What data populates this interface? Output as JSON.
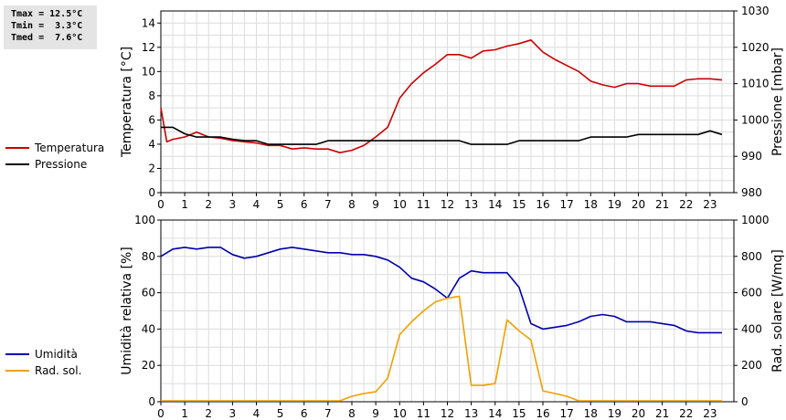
{
  "stats": {
    "tmax": "Tmax = 12.5°C",
    "tmin": "Tmin =  3.3°C",
    "tmed": "Tmed =  7.6°C"
  },
  "legend_top": [
    {
      "label": "Temperatura",
      "color": "#cc0000"
    },
    {
      "label": "Pressione",
      "color": "#000000"
    }
  ],
  "legend_bottom": [
    {
      "label": "Umidità",
      "color": "#0000aa"
    },
    {
      "label": "Rad. sol.",
      "color": "#f0a000"
    }
  ],
  "chart_data": [
    {
      "type": "line",
      "ylabel": "Temperatura [°C]",
      "y2label": "Pressione [mbar]",
      "xlim": [
        0,
        24
      ],
      "ylim": [
        0,
        15
      ],
      "y2lim": [
        980,
        1030
      ],
      "xticks": [
        0,
        1,
        2,
        3,
        4,
        5,
        6,
        7,
        8,
        9,
        10,
        11,
        12,
        13,
        14,
        15,
        16,
        17,
        18,
        19,
        20,
        21,
        22,
        23
      ],
      "yticks": [
        0,
        2,
        4,
        6,
        8,
        10,
        12,
        14
      ],
      "y2ticks": [
        980,
        990,
        1000,
        1010,
        1020,
        1030
      ],
      "grid": true,
      "series": [
        {
          "name": "Temperatura",
          "axis": "left",
          "color": "#cc0000",
          "x": [
            0,
            0.25,
            0.5,
            1,
            1.5,
            2,
            2.5,
            3,
            3.5,
            4,
            4.5,
            5,
            5.5,
            6,
            6.5,
            7,
            7.5,
            8,
            8.5,
            9,
            9.5,
            10,
            10.5,
            11,
            11.5,
            12,
            12.5,
            13,
            13.5,
            14,
            14.5,
            15,
            15.5,
            16,
            16.5,
            17,
            17.5,
            18,
            18.5,
            19,
            19.5,
            20,
            20.5,
            21,
            21.5,
            22,
            22.5,
            23,
            23.5
          ],
          "values": [
            7.0,
            4.2,
            4.4,
            4.6,
            5.0,
            4.6,
            4.5,
            4.3,
            4.2,
            4.1,
            3.9,
            3.9,
            3.6,
            3.7,
            3.6,
            3.6,
            3.3,
            3.5,
            3.9,
            4.6,
            5.4,
            7.8,
            9.0,
            9.9,
            10.6,
            11.4,
            11.4,
            11.1,
            11.7,
            11.8,
            12.1,
            12.3,
            12.6,
            11.6,
            11.0,
            10.5,
            10.0,
            9.2,
            8.9,
            8.7,
            9.0,
            9.0,
            8.8,
            8.8,
            8.8,
            9.3,
            9.4,
            9.4,
            9.3
          ]
        },
        {
          "name": "Pressione",
          "axis": "right",
          "color": "#000000",
          "x": [
            0,
            0.5,
            1,
            1.5,
            2,
            2.5,
            3,
            3.5,
            4,
            4.5,
            5,
            5.5,
            6,
            6.5,
            7,
            7.5,
            8,
            8.5,
            9,
            9.5,
            10,
            10.5,
            11,
            11.5,
            12,
            12.5,
            13,
            13.5,
            14,
            14.5,
            15,
            15.5,
            16,
            16.5,
            17,
            17.5,
            18,
            18.5,
            19,
            19.5,
            20,
            20.5,
            21,
            21.5,
            22,
            22.5,
            23,
            23.5
          ],
          "values": [
            998.0,
            998.0,
            996.2,
            995.3,
            995.3,
            995.3,
            994.7,
            994.3,
            994.3,
            993.3,
            993.3,
            993.3,
            993.3,
            993.3,
            994.3,
            994.3,
            994.3,
            994.3,
            994.3,
            994.3,
            994.3,
            994.3,
            994.3,
            994.3,
            994.3,
            994.3,
            993.3,
            993.3,
            993.3,
            993.3,
            994.3,
            994.3,
            994.3,
            994.3,
            994.3,
            994.3,
            995.3,
            995.3,
            995.3,
            995.3,
            996.0,
            996.0,
            996.0,
            996.0,
            996.0,
            996.0,
            997.0,
            996.0
          ]
        }
      ]
    },
    {
      "type": "line",
      "ylabel": "Umidità relativa [%]",
      "y2label": "Rad. solare [W/mq]",
      "xlim": [
        0,
        24
      ],
      "ylim": [
        0,
        100
      ],
      "y2lim": [
        0,
        1000
      ],
      "xticks": [
        0,
        1,
        2,
        3,
        4,
        5,
        6,
        7,
        8,
        9,
        10,
        11,
        12,
        13,
        14,
        15,
        16,
        17,
        18,
        19,
        20,
        21,
        22,
        23
      ],
      "yticks": [
        0,
        20,
        40,
        60,
        80,
        100
      ],
      "y2ticks": [
        0,
        200,
        400,
        600,
        800,
        1000
      ],
      "grid": true,
      "series": [
        {
          "name": "Umidità",
          "axis": "left",
          "color": "#0000aa",
          "x": [
            0,
            0.5,
            1,
            1.5,
            2,
            2.5,
            3,
            3.5,
            4,
            4.5,
            5,
            5.5,
            6,
            6.5,
            7,
            7.5,
            8,
            8.5,
            9,
            9.5,
            10,
            10.5,
            11,
            11.5,
            12,
            12.5,
            13,
            13.5,
            14,
            14.5,
            15,
            15.5,
            16,
            16.5,
            17,
            17.5,
            18,
            18.5,
            19,
            19.5,
            20,
            20.5,
            21,
            21.5,
            22,
            22.5,
            23,
            23.5
          ],
          "values": [
            80,
            84,
            85,
            84,
            85,
            85,
            81,
            79,
            80,
            82,
            84,
            85,
            84,
            83,
            82,
            82,
            81,
            81,
            80,
            78,
            74,
            68,
            66,
            62,
            57,
            68,
            72,
            71,
            71,
            71,
            63,
            43,
            40,
            41,
            42,
            44,
            47,
            48,
            47,
            44,
            44,
            44,
            43,
            42,
            39,
            38,
            38,
            38
          ]
        },
        {
          "name": "Rad. sol.",
          "axis": "right",
          "color": "#f0a000",
          "x": [
            0,
            1,
            2,
            3,
            4,
            5,
            6,
            7,
            7.5,
            8,
            8.5,
            9,
            9.5,
            10,
            10.5,
            11,
            11.5,
            12,
            12.5,
            13,
            13.5,
            14,
            14.5,
            15,
            15.5,
            16,
            16.5,
            17,
            17.5,
            18,
            19,
            20,
            21,
            22,
            23,
            23.5
          ],
          "values": [
            5,
            5,
            5,
            5,
            5,
            5,
            5,
            5,
            5,
            30,
            45,
            55,
            130,
            370,
            440,
            500,
            550,
            570,
            580,
            90,
            90,
            100,
            450,
            390,
            340,
            60,
            45,
            30,
            5,
            5,
            5,
            5,
            5,
            5,
            5,
            5
          ]
        }
      ]
    }
  ]
}
